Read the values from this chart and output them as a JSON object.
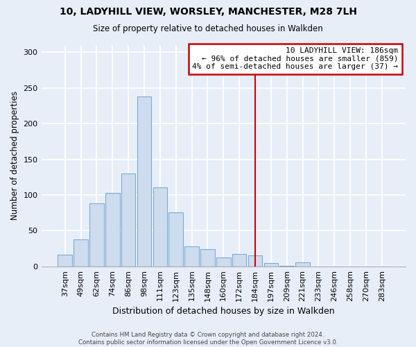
{
  "title_line1": "10, LADYHILL VIEW, WORSLEY, MANCHESTER, M28 7LH",
  "title_line2": "Size of property relative to detached houses in Walkden",
  "xlabel": "Distribution of detached houses by size in Walkden",
  "ylabel": "Number of detached properties",
  "bar_labels": [
    "37sqm",
    "49sqm",
    "62sqm",
    "74sqm",
    "86sqm",
    "98sqm",
    "111sqm",
    "123sqm",
    "135sqm",
    "148sqm",
    "160sqm",
    "172sqm",
    "184sqm",
    "197sqm",
    "209sqm",
    "221sqm",
    "233sqm",
    "246sqm",
    "258sqm",
    "270sqm",
    "283sqm"
  ],
  "bar_values": [
    16,
    38,
    88,
    103,
    130,
    238,
    111,
    76,
    28,
    24,
    12,
    17,
    15,
    5,
    1,
    6,
    0,
    0,
    0,
    0,
    0
  ],
  "bar_color": "#cddcee",
  "bar_edge_color": "#7aadd4",
  "vline_x_label": "184sqm",
  "vline_color": "#cc0000",
  "annotation_title": "10 LADYHILL VIEW: 186sqm",
  "annotation_line1": "← 96% of detached houses are smaller (859)",
  "annotation_line2": "4% of semi-detached houses are larger (37) →",
  "annotation_box_edge": "#cc0000",
  "ylim": [
    0,
    310
  ],
  "yticks": [
    0,
    50,
    100,
    150,
    200,
    250,
    300
  ],
  "footer_line1": "Contains HM Land Registry data © Crown copyright and database right 2024.",
  "footer_line2": "Contains public sector information licensed under the Open Government Licence v3.0.",
  "bg_color": "#e8eef8"
}
